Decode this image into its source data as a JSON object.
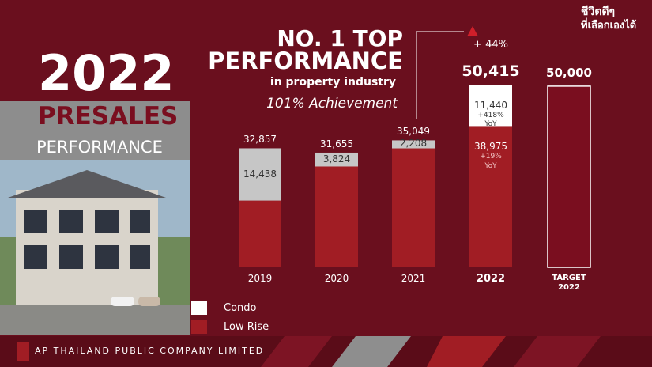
{
  "header": {
    "logo_line1": "ชีวิตดีๆ",
    "logo_line2": "ที่เลือกเองได้"
  },
  "left_panel": {
    "year": "2022",
    "title": "PRESALES",
    "subtitle": "PERFORMANCE"
  },
  "headline": {
    "line1": "NO. 1 TOP",
    "line2": "PERFORMANCE",
    "line3": "in property industry",
    "line4": "101% Achievement"
  },
  "footer": {
    "company": "AP THAILAND PUBLIC COMPANY LIMITED"
  },
  "chart_data": {
    "type": "stacked_bar",
    "categories": [
      "2019",
      "2020",
      "2021",
      "2022",
      "TARGET 2022"
    ],
    "ylim": [
      0,
      55000
    ],
    "series": [
      {
        "name": "Condo",
        "color": "#ffffff",
        "colors": [
          "#c6c6c6",
          "#c6c6c6",
          "#c6c6c6",
          "#ffffff",
          null
        ],
        "values": [
          14438,
          3824,
          2208,
          11440,
          null
        ],
        "value_labels": [
          "14,438",
          "3,824",
          "2,208",
          "11,440",
          null
        ],
        "notes": [
          null,
          null,
          null,
          "+418% YoY",
          null
        ]
      },
      {
        "name": "Low Rise",
        "color": "#a11d24",
        "values": [
          18419,
          27831,
          32841,
          38975,
          null
        ],
        "value_labels": [
          null,
          null,
          null,
          "38,975",
          null
        ],
        "notes": [
          null,
          null,
          null,
          "+19% YoY",
          null
        ]
      }
    ],
    "totals": [
      32857,
      31655,
      35049,
      50415,
      null
    ],
    "total_labels": [
      "32,857",
      "31,655",
      "35,049",
      "50,415",
      null
    ],
    "target": {
      "value": 50000,
      "label": "50,000",
      "color": "#7a0e1f"
    },
    "growth_label": "+ 44%"
  }
}
